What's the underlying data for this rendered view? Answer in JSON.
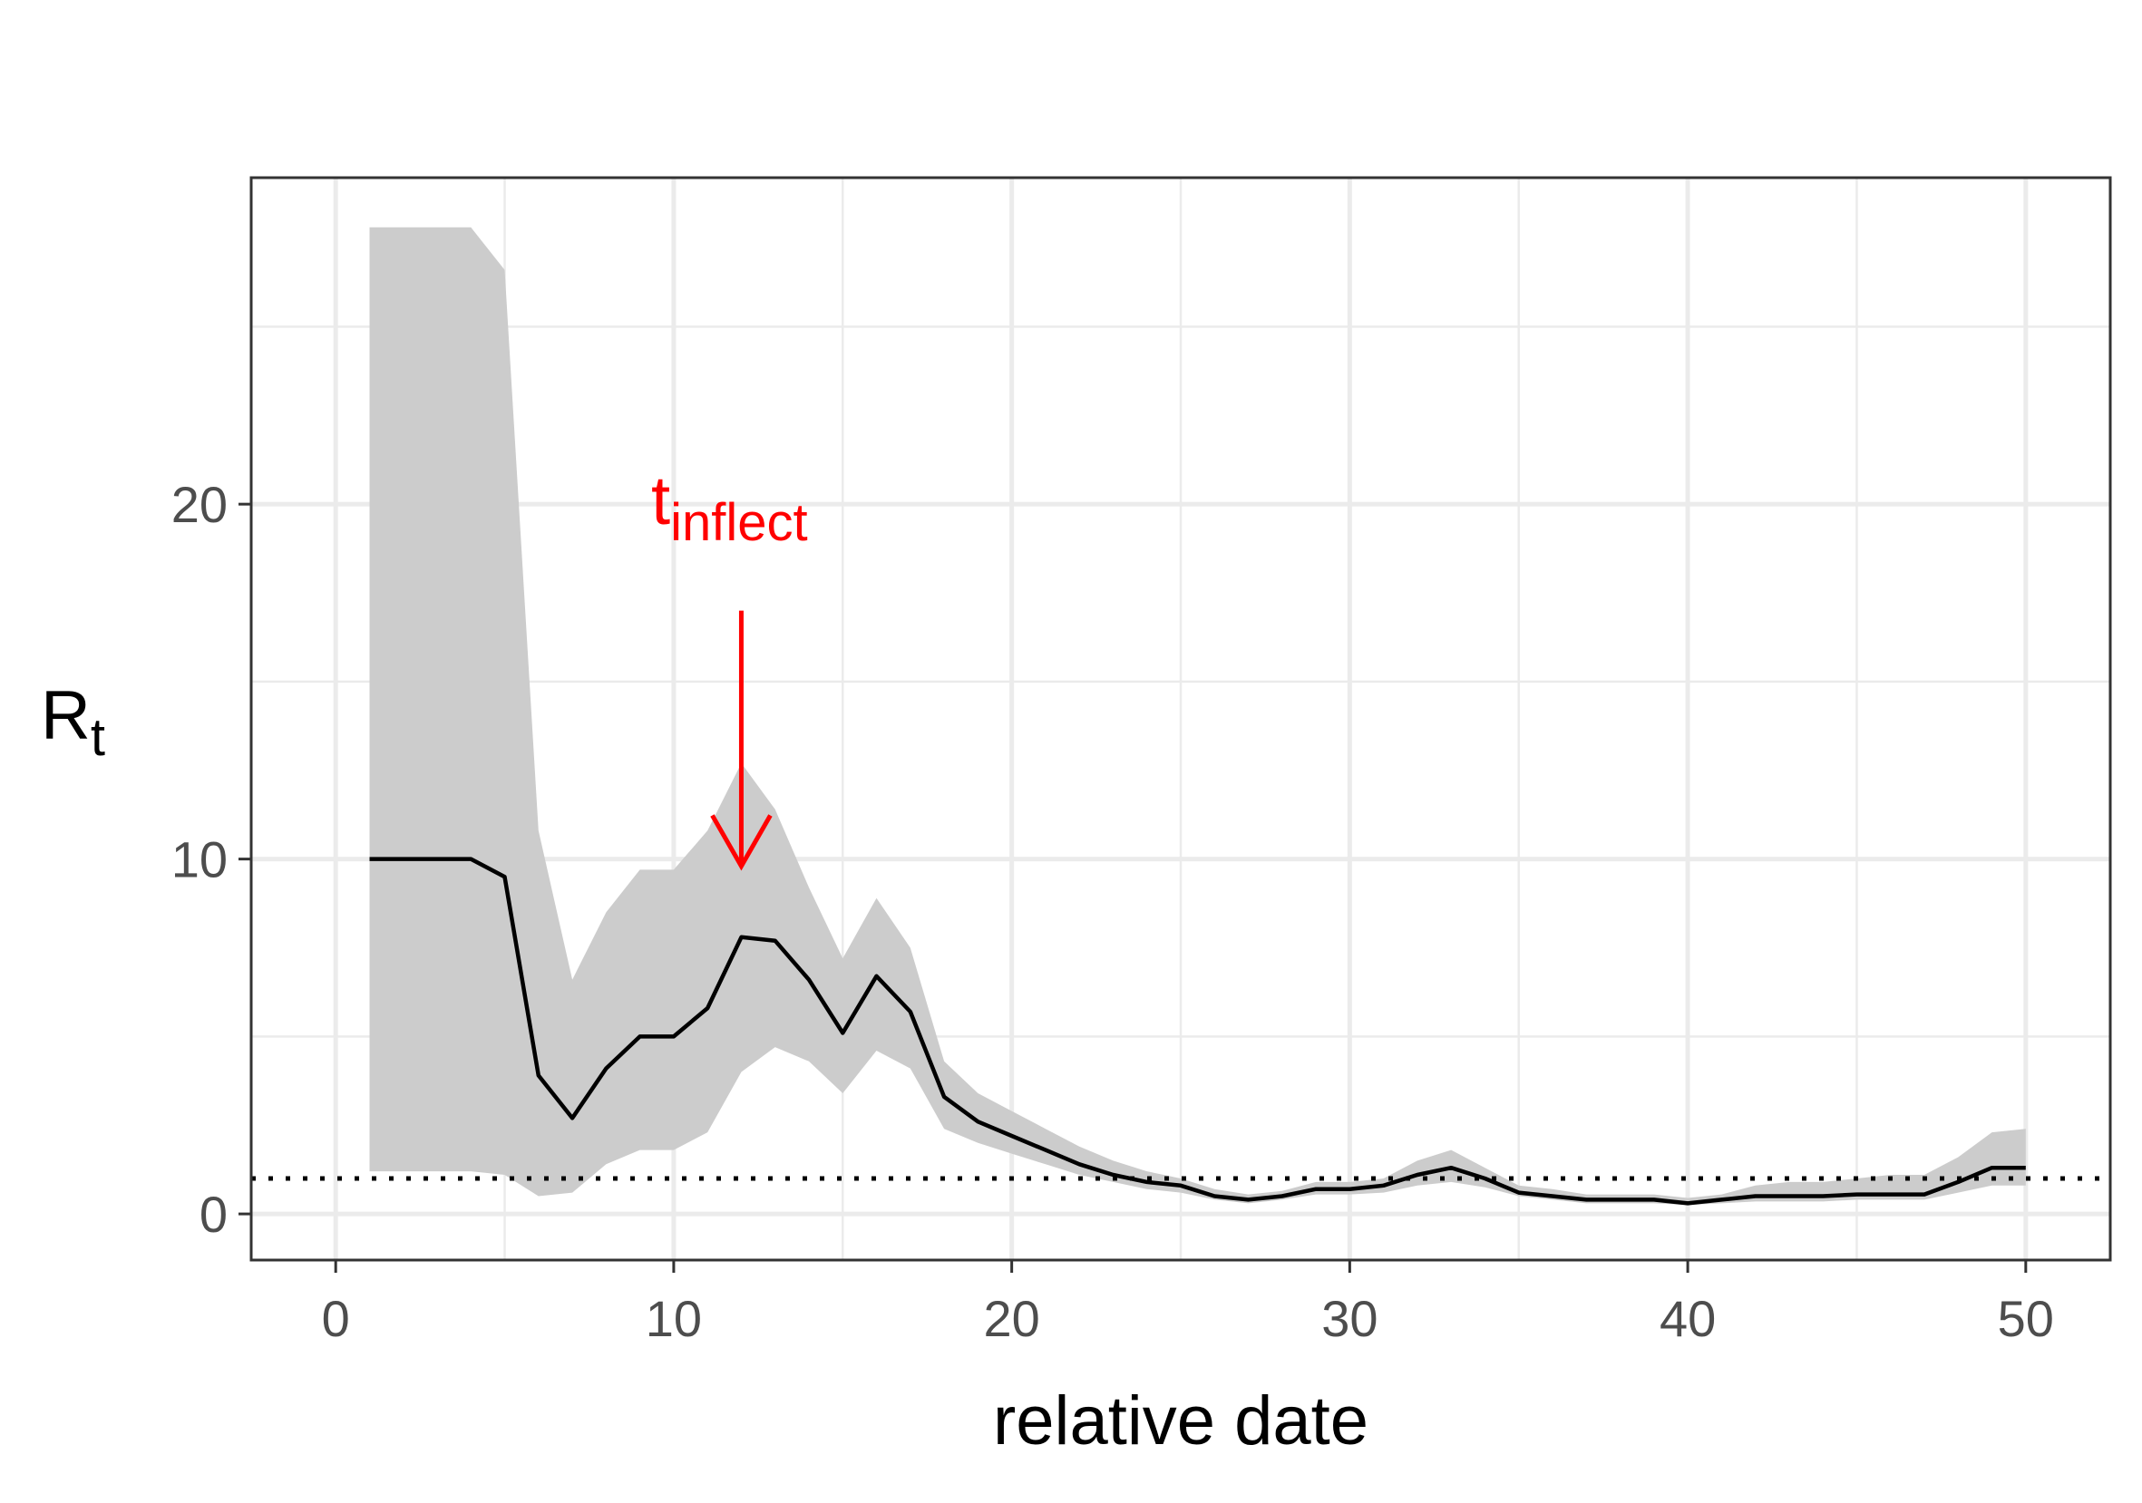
{
  "chart_data": {
    "type": "line",
    "xlabel": "relative date",
    "ylabel": {
      "main": "R",
      "subscript": "t"
    },
    "xlim": [
      -2.5,
      52.5
    ],
    "ylim": [
      -1.3,
      29.2
    ],
    "x_ticks": [
      0,
      10,
      20,
      30,
      40,
      50
    ],
    "y_ticks": [
      0,
      10,
      20
    ],
    "x_minor_ticks": [
      5,
      15,
      25,
      35,
      45
    ],
    "y_minor_ticks": [
      5,
      15,
      25
    ],
    "grid": true,
    "reference_line": {
      "y": 1,
      "style": "dotted",
      "color": "#000000"
    },
    "series": [
      {
        "color": "#000000",
        "band_color": "#cccccc",
        "x": [
          1,
          2,
          3,
          4,
          5,
          6,
          7,
          8,
          9,
          10,
          11,
          12,
          13,
          14,
          15,
          16,
          17,
          18,
          19,
          20,
          21,
          22,
          23,
          24,
          25,
          26,
          27,
          28,
          29,
          30,
          31,
          32,
          33,
          34,
          35,
          36,
          37,
          38,
          39,
          40,
          41,
          42,
          43,
          44,
          45,
          46,
          47,
          48,
          49,
          50
        ],
        "y": [
          10.0,
          10.0,
          10.0,
          10.0,
          9.5,
          3.9,
          2.7,
          4.1,
          5.0,
          5.0,
          5.8,
          7.8,
          7.7,
          6.6,
          5.1,
          6.7,
          5.7,
          3.3,
          2.6,
          2.2,
          1.8,
          1.4,
          1.1,
          0.9,
          0.8,
          0.5,
          0.4,
          0.5,
          0.7,
          0.7,
          0.8,
          1.1,
          1.3,
          1.0,
          0.6,
          0.5,
          0.4,
          0.4,
          0.4,
          0.3,
          0.4,
          0.5,
          0.5,
          0.5,
          0.55,
          0.55,
          0.55,
          0.9,
          1.3,
          1.3
        ],
        "lower": [
          1.2,
          1.2,
          1.2,
          1.2,
          1.1,
          0.5,
          0.6,
          1.4,
          1.8,
          1.8,
          2.3,
          4.0,
          4.7,
          4.3,
          3.4,
          4.6,
          4.1,
          2.4,
          2.0,
          1.7,
          1.4,
          1.1,
          0.9,
          0.7,
          0.6,
          0.4,
          0.3,
          0.4,
          0.55,
          0.55,
          0.6,
          0.8,
          0.9,
          0.75,
          0.5,
          0.4,
          0.3,
          0.3,
          0.3,
          0.25,
          0.3,
          0.35,
          0.35,
          0.35,
          0.4,
          0.4,
          0.4,
          0.6,
          0.8,
          0.8
        ],
        "upper": [
          27.8,
          27.8,
          27.8,
          27.8,
          26.6,
          10.8,
          6.6,
          8.5,
          9.7,
          9.7,
          10.8,
          12.7,
          11.4,
          9.2,
          7.2,
          8.9,
          7.5,
          4.3,
          3.4,
          2.9,
          2.4,
          1.9,
          1.5,
          1.2,
          1.0,
          0.7,
          0.55,
          0.65,
          0.9,
          0.9,
          1.0,
          1.5,
          1.8,
          1.3,
          0.8,
          0.7,
          0.55,
          0.55,
          0.55,
          0.45,
          0.55,
          0.8,
          0.9,
          0.9,
          1.0,
          1.1,
          1.1,
          1.6,
          2.3,
          2.4
        ]
      }
    ],
    "annotation": {
      "main": "t",
      "subscript": "inflect",
      "arrow_x": 12,
      "arrow_y_start": 17.0,
      "arrow_y_end": 9.8,
      "color": "#ff0000"
    }
  }
}
